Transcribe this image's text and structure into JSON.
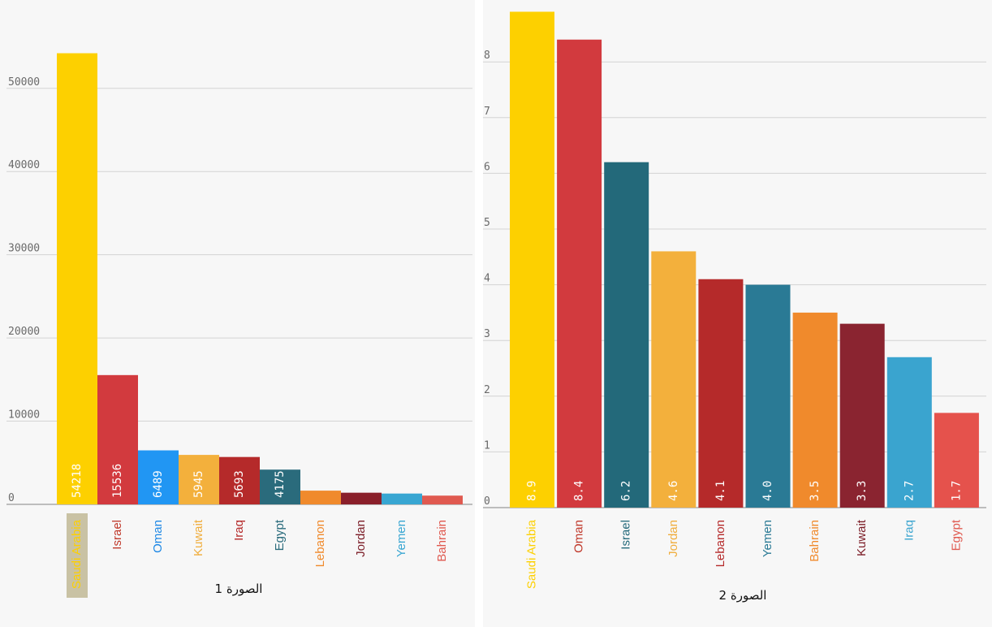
{
  "chart_data": [
    {
      "type": "bar",
      "caption": "الصورة 1",
      "categories": [
        "Saudi Arabia",
        "Israel",
        "Oman",
        "Kuwait",
        "Iraq",
        "Egypt",
        "Lebanon",
        "Jordan",
        "Yemen",
        "Bahrain"
      ],
      "values": [
        54218,
        15536,
        6489,
        5945,
        5693,
        4175,
        1650,
        1400,
        1300,
        1050
      ],
      "labels": [
        "54218",
        "15536",
        "6489",
        "5945",
        "5693",
        "4175",
        "",
        "",
        "",
        ""
      ],
      "colors": [
        "#fdd000",
        "#d23a3e",
        "#2196f3",
        "#f3b03c",
        "#b52a2a",
        "#2a6b7c",
        "#f08a2c",
        "#8a1f2a",
        "#38a6d2",
        "#e05a50"
      ],
      "label_colors": [
        "#fdd000",
        "#c0392b",
        "#1e88e5",
        "#f0ad3c",
        "#b52a2a",
        "#2a6b7c",
        "#f08a2c",
        "#7b1c26",
        "#38a6d2",
        "#e05a50"
      ],
      "highlight_index": 0,
      "yticks": [
        0,
        10000,
        20000,
        30000,
        40000,
        50000
      ],
      "ylim": [
        0,
        60000
      ],
      "grid": true
    },
    {
      "type": "bar",
      "caption": "الصورة 2",
      "categories": [
        "Saudi Arabia",
        "Oman",
        "Israel",
        "Jordan",
        "Lebanon",
        "Yemen",
        "Bahrain",
        "Kuwait",
        "Iraq",
        "Egypt"
      ],
      "values": [
        8.9,
        8.4,
        6.2,
        4.6,
        4.1,
        4.0,
        3.5,
        3.3,
        2.7,
        1.7
      ],
      "labels": [
        "8.9",
        "8.4",
        "6.2",
        "4.6",
        "4.1",
        "4.0",
        "3.5",
        "3.3",
        "2.7",
        "1.7"
      ],
      "colors": [
        "#fdd000",
        "#d23a3e",
        "#23697a",
        "#f3b03c",
        "#b52a2a",
        "#2a7a95",
        "#f08a2c",
        "#8a2430",
        "#3aa4cf",
        "#e5524c"
      ],
      "label_colors": [
        "#fdd000",
        "#c0392b",
        "#23697a",
        "#f0ad3c",
        "#b52a2a",
        "#2a7a95",
        "#f08a2c",
        "#7b1c26",
        "#3aa4cf",
        "#e05a50"
      ],
      "yticks": [
        0,
        1,
        2,
        3,
        4,
        5,
        6,
        7,
        8
      ],
      "ylim": [
        0,
        9
      ],
      "grid": true
    }
  ]
}
